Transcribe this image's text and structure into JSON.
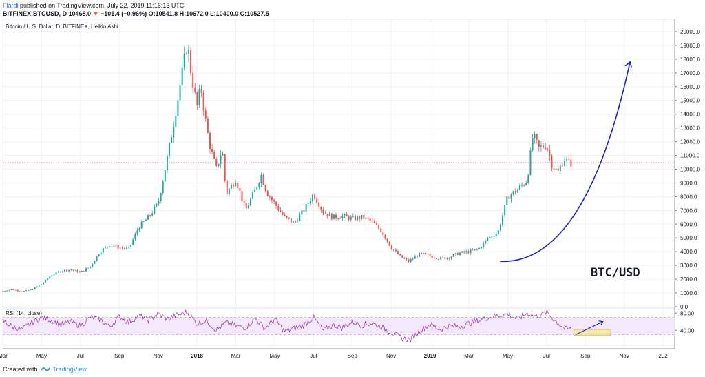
{
  "header": {
    "author": "Flardi",
    "published": "published on TradingView.com, July 22, 2019 11:16:13 UTC",
    "symbol": "BITFINEX:BTCUSD, D",
    "price": "10468.0",
    "change_arrow": "▼",
    "change": "−101.4 (−0.96%)",
    "ohlc": "O:10541.8 H:10672.0 L:10400.0 C:10527.5"
  },
  "footer": {
    "created_label": "Created with",
    "brand": "TradingView"
  },
  "chart_data": [
    {
      "type": "candlestick",
      "title": "Bitcoin / U.S. Dollar, D, BITFINEX, Heikin Ashi",
      "annotation_text": "BTC/USD",
      "ylim": [
        0,
        20500
      ],
      "y_ticks": [
        "0.0",
        "1000.0",
        "2000.0",
        "3000.0",
        "4000.0",
        "5000.0",
        "6000.0",
        "7000.0",
        "8000.0",
        "9000.0",
        "10000.0",
        "11000.0",
        "12000.0",
        "13000.0",
        "14000.0",
        "15000.0",
        "16000.0",
        "17000.0",
        "18000.0",
        "19000.0",
        "20000.0"
      ],
      "x_ticks": [
        "Mar",
        "May",
        "Jul",
        "Sep",
        "Nov",
        "2018",
        "Mar",
        "May",
        "Jul",
        "Sep",
        "Nov",
        "2019",
        "Mar",
        "May",
        "Jul",
        "Sep",
        "Nov",
        "202"
      ],
      "bold_x_ticks": [
        "2018",
        "2019"
      ],
      "x_tick_months": [
        0,
        2,
        4,
        6,
        8,
        10,
        12,
        14,
        16,
        18,
        20,
        22,
        24,
        26,
        28,
        30,
        32,
        34
      ],
      "x_end_month": 34.6,
      "last_price": 10468.0,
      "colors": {
        "up": "#26a69a",
        "down": "#ef5350",
        "curve": "#1a1fd4",
        "last_line": "#e53935"
      },
      "series": [
        {
          "name": "BTCUSD",
          "months": [
            0,
            0.5,
            1,
            1.5,
            2,
            2.5,
            3,
            3.5,
            4,
            4.5,
            5,
            5.5,
            6,
            6.5,
            7,
            7.5,
            8,
            8.5,
            9,
            9.5,
            9.7,
            10,
            10.2,
            10.5,
            10.7,
            11,
            11.3,
            11.5,
            12,
            12.5,
            13,
            13.3,
            13.6,
            14,
            14.5,
            15,
            15.5,
            16,
            16.5,
            17,
            17.5,
            18,
            18.5,
            19,
            19.5,
            20,
            20.5,
            20.9,
            21.5,
            22,
            22.5,
            23,
            23.5,
            24,
            24.5,
            25,
            25.5,
            26,
            26.5,
            27,
            27.3,
            27.6,
            28,
            28.3,
            28.6,
            28.9,
            29.2,
            29.3
          ],
          "values": [
            1150,
            1250,
            1100,
            1250,
            1650,
            2300,
            2600,
            2700,
            2500,
            2900,
            4000,
            4500,
            4300,
            4200,
            5800,
            6500,
            7500,
            11000,
            15000,
            19200,
            17000,
            14500,
            16000,
            13000,
            11500,
            10000,
            11500,
            8200,
            9300,
            7000,
            8500,
            9600,
            8300,
            7500,
            6500,
            6100,
            7000,
            8200,
            6900,
            6500,
            6600,
            6400,
            6500,
            6200,
            5500,
            4300,
            3600,
            3300,
            3850,
            3700,
            3500,
            3600,
            3900,
            4000,
            4200,
            5000,
            5400,
            8000,
            8500,
            9200,
            12500,
            11500,
            11800,
            10200,
            9800,
            10800,
            10400,
            10468
          ]
        },
        {
          "name": "RSI (14, close)",
          "y_ticks": [
            "40.00",
            "80.00"
          ],
          "band": [
            30,
            70
          ],
          "months": [
            0,
            0.5,
            1,
            1.5,
            2,
            2.5,
            3,
            3.5,
            4,
            4.5,
            5,
            5.5,
            6,
            6.5,
            7,
            7.5,
            8,
            8.5,
            9,
            9.5,
            10,
            10.5,
            11,
            11.5,
            12,
            12.5,
            13,
            13.5,
            14,
            14.5,
            15,
            15.5,
            16,
            16.5,
            17,
            17.5,
            18,
            18.5,
            19,
            19.5,
            20,
            20.5,
            21,
            21.5,
            22,
            22.5,
            23,
            23.5,
            24,
            24.5,
            25,
            25.5,
            26,
            26.5,
            27,
            27.5,
            28,
            28.5,
            29,
            29.3
          ],
          "values": [
            62,
            48,
            42,
            58,
            70,
            64,
            52,
            60,
            50,
            70,
            66,
            48,
            72,
            58,
            74,
            64,
            78,
            66,
            76,
            82,
            55,
            62,
            40,
            58,
            50,
            46,
            68,
            44,
            66,
            38,
            44,
            52,
            70,
            40,
            52,
            46,
            60,
            52,
            56,
            48,
            36,
            22,
            18,
            40,
            54,
            42,
            50,
            48,
            56,
            62,
            70,
            74,
            78,
            66,
            80,
            72,
            82,
            60,
            42,
            44
          ]
        }
      ]
    }
  ]
}
